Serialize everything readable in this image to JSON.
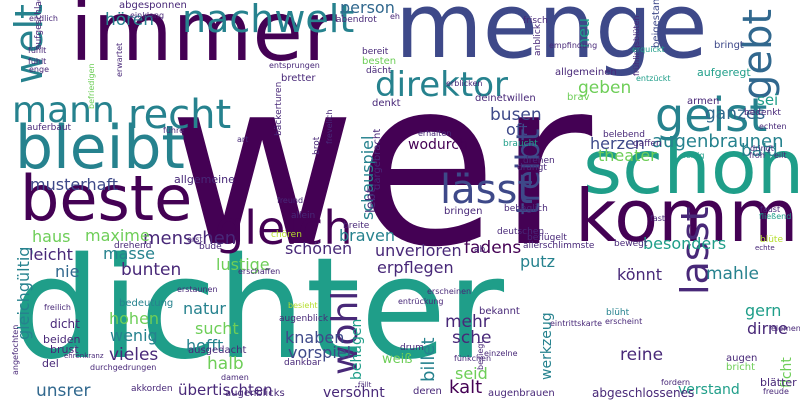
{
  "colors": {
    "background": "#ffffff",
    "dark_purple": "#440154",
    "purple": "#482878",
    "indigo": "#3e4989",
    "blue": "#31688e",
    "teal": "#26828e",
    "green": "#1f9e89",
    "green_light": "#35b779",
    "lime": "#6ece58",
    "yellow_green": "#b5de2b",
    "yellow": "#fde725"
  },
  "words": [
    {
      "text": "wer",
      "color": "dark_purple"
    },
    {
      "text": "dichter",
      "color": "green"
    },
    {
      "text": "immer",
      "color": "dark_purple"
    },
    {
      "text": "menge",
      "color": "indigo"
    },
    {
      "text": "schon",
      "color": "green"
    },
    {
      "text": "beste",
      "color": "dark_purple"
    },
    {
      "text": "kommt",
      "color": "dark_purple"
    },
    {
      "text": "bleibt",
      "color": "teal"
    },
    {
      "text": "gleich",
      "color": "dark_purple"
    },
    {
      "text": "nachwelt",
      "color": "teal"
    },
    {
      "text": "direktor",
      "color": "teal"
    },
    {
      "text": "geist",
      "color": "teal"
    },
    {
      "text": "gebt",
      "color": "blue"
    },
    {
      "text": "recht",
      "color": "teal"
    },
    {
      "text": "mann",
      "color": "teal"
    },
    {
      "text": "welt",
      "color": "teal"
    },
    {
      "text": "lässt",
      "color": "indigo"
    },
    {
      "text": "treibt",
      "color": "indigo"
    },
    {
      "text": "lasst",
      "color": "purple"
    },
    {
      "text": "wohl",
      "color": "purple"
    },
    {
      "text": "schauspiel",
      "color": "teal"
    },
    {
      "text": "musterhaft",
      "color": "indigo"
    },
    {
      "text": "menschen",
      "color": "purple"
    },
    {
      "text": "gleichgültig",
      "color": "teal"
    },
    {
      "text": "hören",
      "color": "teal"
    },
    {
      "text": "person",
      "color": "blue"
    },
    {
      "text": "ganzes",
      "color": "blue"
    },
    {
      "text": "busen",
      "color": "indigo"
    },
    {
      "text": "oft",
      "color": "indigo"
    },
    {
      "text": "herzen",
      "color": "indigo"
    },
    {
      "text": "augenbraunen",
      "color": "teal"
    },
    {
      "text": "bald",
      "color": "teal"
    },
    {
      "text": "theater",
      "color": "lime"
    },
    {
      "text": "wodurch",
      "color": "dark_purple"
    },
    {
      "text": "geben",
      "color": "lime"
    },
    {
      "text": "neu",
      "color": "green"
    },
    {
      "text": "sei",
      "color": "green"
    },
    {
      "text": "haus",
      "color": "lime"
    },
    {
      "text": "maxime",
      "color": "lime"
    },
    {
      "text": "leicht",
      "color": "purple"
    },
    {
      "text": "masse",
      "color": "teal"
    },
    {
      "text": "nie",
      "color": "blue"
    },
    {
      "text": "bunten",
      "color": "purple"
    },
    {
      "text": "lustige",
      "color": "lime"
    },
    {
      "text": "schönen",
      "color": "purple"
    },
    {
      "text": "erpflegen",
      "color": "purple"
    },
    {
      "text": "fadens",
      "color": "dark_purple"
    },
    {
      "text": "putz",
      "color": "teal"
    },
    {
      "text": "könnt",
      "color": "purple"
    },
    {
      "text": "mahle",
      "color": "teal"
    },
    {
      "text": "besonders",
      "color": "green"
    },
    {
      "text": "braven",
      "color": "teal"
    },
    {
      "text": "unverloren",
      "color": "purple"
    },
    {
      "text": "hohen",
      "color": "lime"
    },
    {
      "text": "natur",
      "color": "teal"
    },
    {
      "text": "sucht",
      "color": "lime"
    },
    {
      "text": "hofft",
      "color": "teal"
    },
    {
      "text": "wenig",
      "color": "teal"
    },
    {
      "text": "vieles",
      "color": "purple"
    },
    {
      "text": "knaben",
      "color": "indigo"
    },
    {
      "text": "vorspiel",
      "color": "indigo"
    },
    {
      "text": "halb",
      "color": "lime"
    },
    {
      "text": "mehr",
      "color": "purple"
    },
    {
      "text": "sche",
      "color": "purple"
    },
    {
      "text": "billet",
      "color": "teal"
    },
    {
      "text": "werkzeug",
      "color": "teal"
    },
    {
      "text": "reine",
      "color": "purple"
    },
    {
      "text": "gern",
      "color": "green"
    },
    {
      "text": "dirne",
      "color": "purple"
    },
    {
      "text": "ficht",
      "color": "lime"
    },
    {
      "text": "behagen",
      "color": "green"
    },
    {
      "text": "seid",
      "color": "lime"
    },
    {
      "text": "kalt",
      "color": "dark_purple"
    },
    {
      "text": "unsrer",
      "color": "blue"
    },
    {
      "text": "übertischten",
      "color": "purple"
    },
    {
      "text": "versöhnt",
      "color": "purple"
    },
    {
      "text": "verstand",
      "color": "green"
    },
    {
      "text": "abgeschlossenes",
      "color": "purple"
    },
    {
      "text": "augenbrauen",
      "color": "purple"
    },
    {
      "text": "weiß",
      "color": "lime"
    },
    {
      "text": "ausgedacht",
      "color": "purple"
    },
    {
      "text": "dicht",
      "color": "purple"
    },
    {
      "text": "beiden",
      "color": "purple"
    },
    {
      "text": "brust",
      "color": "purple"
    },
    {
      "text": "del",
      "color": "purple"
    },
    {
      "text": "bedeutung",
      "color": "teal"
    },
    {
      "text": "augenblick",
      "color": "purple"
    },
    {
      "text": "dankbar",
      "color": "purple"
    },
    {
      "text": "bekannt",
      "color": "purple"
    },
    {
      "text": "blüht",
      "color": "teal"
    },
    {
      "text": "augen",
      "color": "purple"
    },
    {
      "text": "bricht",
      "color": "lime"
    },
    {
      "text": "blätter",
      "color": "purple"
    },
    {
      "text": "deren",
      "color": "purple"
    },
    {
      "text": "akkorden",
      "color": "purple"
    },
    {
      "text": "augenblicks",
      "color": "purple"
    },
    {
      "text": "allgemeine",
      "color": "purple"
    },
    {
      "text": "allgemeinen",
      "color": "purple"
    },
    {
      "text": "aufgeregt",
      "color": "green"
    },
    {
      "text": "armen",
      "color": "purple"
    },
    {
      "text": "belebend",
      "color": "purple"
    },
    {
      "text": "drehen",
      "color": "purple"
    },
    {
      "text": "drangt",
      "color": "purple"
    },
    {
      "text": "braucht",
      "color": "green"
    },
    {
      "text": "bringt",
      "color": "indigo"
    },
    {
      "text": "beigestanden",
      "color": "indigo"
    },
    {
      "text": "bringen",
      "color": "purple"
    },
    {
      "text": "behaglich",
      "color": "purple"
    },
    {
      "text": "deutschen",
      "color": "purple"
    },
    {
      "text": "beflügelt",
      "color": "purple"
    },
    {
      "text": "allerschlimmste",
      "color": "purple"
    },
    {
      "text": "bewegt",
      "color": "purple"
    },
    {
      "text": "blüte",
      "color": "yellow_green"
    },
    {
      "text": "faust",
      "color": "purple"
    },
    {
      "text": "breite",
      "color": "purple"
    },
    {
      "text": "allein",
      "color": "purple"
    },
    {
      "text": "freund",
      "color": "purple"
    },
    {
      "text": "drehend",
      "color": "purple"
    },
    {
      "text": "bude",
      "color": "purple"
    },
    {
      "text": "erst",
      "color": "purple"
    },
    {
      "text": "lebt",
      "color": "purple"
    },
    {
      "text": "dargebracht",
      "color": "purple"
    },
    {
      "text": "brot",
      "color": "purple"
    },
    {
      "text": "erhalten",
      "color": "purple"
    },
    {
      "text": "deinetwillen",
      "color": "purple"
    },
    {
      "text": "denkt",
      "color": "purple"
    },
    {
      "text": "brav",
      "color": "lime"
    },
    {
      "text": "auferbaut",
      "color": "purple"
    },
    {
      "text": "führe",
      "color": "purple"
    },
    {
      "text": "bäckerturen",
      "color": "purple"
    },
    {
      "text": "art",
      "color": "purple"
    },
    {
      "text": "bretter",
      "color": "purple"
    },
    {
      "text": "besten",
      "color": "lime"
    },
    {
      "text": "dächt",
      "color": "purple"
    },
    {
      "text": "bereit",
      "color": "purple"
    },
    {
      "text": "abendrot",
      "color": "purple"
    },
    {
      "text": "eh",
      "color": "purple"
    },
    {
      "text": "endlich",
      "color": "purple"
    },
    {
      "text": "aufgeschlagen",
      "color": "purple"
    },
    {
      "text": "abgesponnen",
      "color": "purple"
    },
    {
      "text": "einklang",
      "color": "purple"
    },
    {
      "text": "fühlt",
      "color": "purple"
    },
    {
      "text": "enge",
      "color": "purple"
    },
    {
      "text": "befriedigen",
      "color": "lime"
    },
    {
      "text": "frisch",
      "color": "purple"
    },
    {
      "text": "anblick",
      "color": "purple"
    },
    {
      "text": "empfindung",
      "color": "purple"
    },
    {
      "text": "frühlingsblüten",
      "color": "purple"
    },
    {
      "text": "erquickt",
      "color": "green"
    },
    {
      "text": "entzückt",
      "color": "green"
    },
    {
      "text": "erblicken",
      "color": "purple"
    },
    {
      "text": "bedenkt",
      "color": "purple"
    },
    {
      "text": "echten",
      "color": "purple"
    },
    {
      "text": "dringt",
      "color": "purple"
    },
    {
      "text": "froh",
      "color": "purple"
    },
    {
      "text": "eilt",
      "color": "purple"
    },
    {
      "text": "gaffen",
      "color": "purple"
    },
    {
      "text": "fertig",
      "color": "green"
    },
    {
      "text": "fast",
      "color": "purple"
    },
    {
      "text": "fließend",
      "color": "green"
    },
    {
      "text": "chören",
      "color": "yellow_green"
    },
    {
      "text": "erschaffen",
      "color": "purple"
    },
    {
      "text": "erstaunen",
      "color": "purple"
    },
    {
      "text": "freilich",
      "color": "purple"
    },
    {
      "text": "angefochten",
      "color": "purple"
    },
    {
      "text": "entrückung",
      "color": "purple"
    },
    {
      "text": "erscheinen",
      "color": "purple"
    },
    {
      "text": "besieht",
      "color": "yellow_green"
    },
    {
      "text": "besiegt",
      "color": "purple"
    },
    {
      "text": "eintrittskarte",
      "color": "purple"
    },
    {
      "text": "erscheint",
      "color": "purple"
    },
    {
      "text": "element",
      "color": "purple"
    },
    {
      "text": "fordern",
      "color": "purple"
    },
    {
      "text": "freude",
      "color": "purple"
    },
    {
      "text": "einzelne",
      "color": "purple"
    },
    {
      "text": "fällt",
      "color": "purple"
    },
    {
      "text": "damen",
      "color": "purple"
    },
    {
      "text": "durchgedrungen",
      "color": "purple"
    },
    {
      "text": "ehrenkranz",
      "color": "purple"
    },
    {
      "text": "drum",
      "color": "purple"
    },
    {
      "text": "fünkchen",
      "color": "purple"
    },
    {
      "text": "entsprungen",
      "color": "purple"
    },
    {
      "text": "erwartet",
      "color": "purple"
    },
    {
      "text": "echte",
      "color": "purple"
    },
    {
      "text": "ab",
      "color": "purple"
    },
    {
      "text": "frevelich",
      "color": "purple"
    },
    {
      "text": "fühlt",
      "color": "purple"
    }
  ]
}
